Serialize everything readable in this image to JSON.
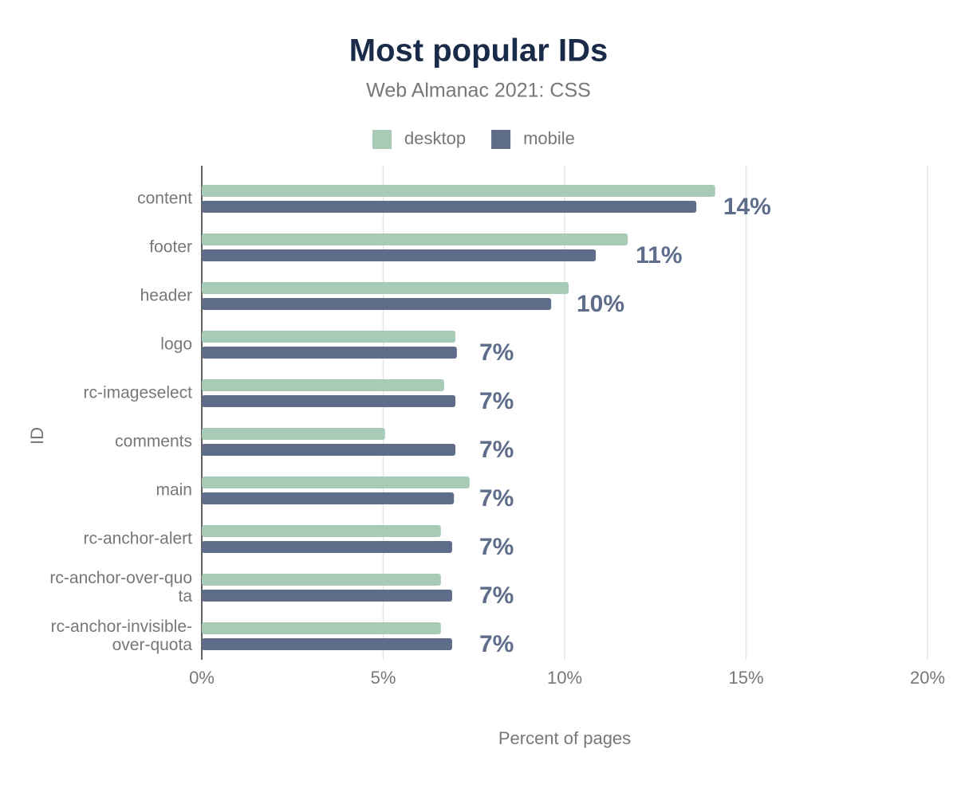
{
  "chart_data": {
    "type": "bar",
    "orientation": "horizontal",
    "title": "Most popular IDs",
    "subtitle": "Web Almanac 2021: CSS",
    "x_label": "Percent of pages",
    "y_label": "ID",
    "categories": [
      "content",
      "footer",
      "header",
      "logo",
      "rc-imageselect",
      "comments",
      "main",
      "rc-anchor-alert",
      "rc-anchor-over-quota",
      "rc-anchor-invisible-over-quota"
    ],
    "series": [
      {
        "name": "desktop",
        "color": "#a8cbb8",
        "values": [
          14.15,
          11.74,
          10.11,
          6.99,
          6.68,
          5.05,
          7.38,
          6.59,
          6.59,
          6.59
        ]
      },
      {
        "name": "mobile",
        "color": "#5d6d8a",
        "values": [
          13.63,
          10.86,
          9.63,
          7.03,
          6.99,
          6.99,
          6.95,
          6.9,
          6.9,
          6.9
        ],
        "value_labels": [
          "14%",
          "11%",
          "10%",
          "7%",
          "7%",
          "7%",
          "7%",
          "7%",
          "7%",
          "7%"
        ]
      }
    ],
    "xlim": [
      0,
      20
    ],
    "xticks": [
      {
        "value": 0,
        "label": "0%"
      },
      {
        "value": 5,
        "label": "5%"
      },
      {
        "value": 10,
        "label": "10%"
      },
      {
        "value": 15,
        "label": "15%"
      },
      {
        "value": 20,
        "label": "20%"
      }
    ],
    "grid": true,
    "legend": "top"
  }
}
